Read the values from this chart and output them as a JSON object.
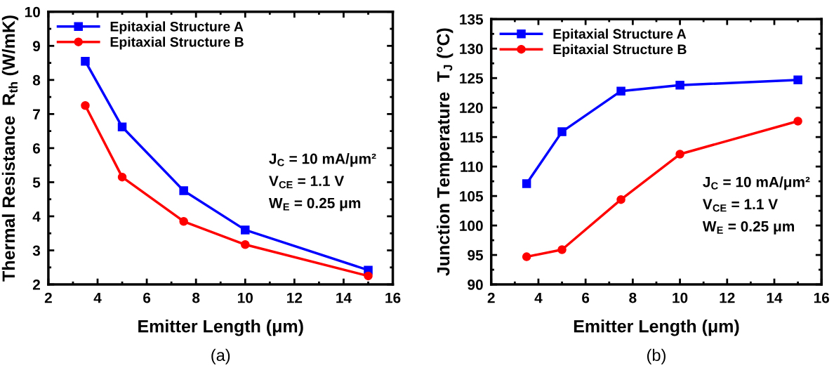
{
  "chart_data": [
    {
      "type": "line",
      "xlabel": "Emitter Length (μm)",
      "ylabel": "Thermal Resistance  R$_{th}$ (W/mK)",
      "x": [
        3.5,
        5,
        7.5,
        10,
        15
      ],
      "series": [
        {
          "name": "Epitaxial Structure A",
          "color": "#0000ff",
          "marker": "square",
          "values": [
            8.55,
            6.62,
            4.75,
            3.6,
            2.42
          ]
        },
        {
          "name": "Epitaxial Structure B",
          "color": "#ff0000",
          "marker": "circle",
          "values": [
            7.25,
            5.15,
            3.85,
            3.17,
            2.25
          ]
        }
      ],
      "xlim": [
        2,
        16
      ],
      "xticks": [
        2,
        4,
        6,
        8,
        10,
        12,
        14,
        16
      ],
      "ylim": [
        2,
        10
      ],
      "yticks": [
        2,
        3,
        4,
        5,
        6,
        7,
        8,
        9,
        10
      ],
      "legend": "top left",
      "grid": false,
      "annotations": [
        "J$_{C}$ = 10 mA/μm²\nV$_{CE}$ = 1.1 V\nW$_{E}$ = 0.25 μm",
        "(a)"
      ]
    },
    {
      "type": "line",
      "xlabel": "Emitter Length (μm)",
      "ylabel": "Junction Temperature  T$_{J}$ (°C)",
      "x": [
        3.5,
        5,
        7.5,
        10,
        15
      ],
      "series": [
        {
          "name": "Epitaxial Structure A",
          "color": "#0000ff",
          "marker": "square",
          "values": [
            107.1,
            115.9,
            122.8,
            123.8,
            124.7
          ]
        },
        {
          "name": "Epitaxial Structure B",
          "color": "#ff0000",
          "marker": "circle",
          "values": [
            94.7,
            95.9,
            104.4,
            112.1,
            117.7
          ]
        }
      ],
      "xlim": [
        2,
        16
      ],
      "xticks": [
        2,
        4,
        6,
        8,
        10,
        12,
        14,
        16
      ],
      "ylim": [
        90,
        135
      ],
      "yticks": [
        90,
        95,
        100,
        105,
        110,
        115,
        120,
        125,
        130,
        135
      ],
      "legend": "top left",
      "grid": false,
      "annotations": [
        "J$_{C}$ = 10 mA/μm²\nV$_{CE}$ = 1.1 V\nW$_{E}$ = 0.25 μm",
        "(b)"
      ]
    }
  ]
}
